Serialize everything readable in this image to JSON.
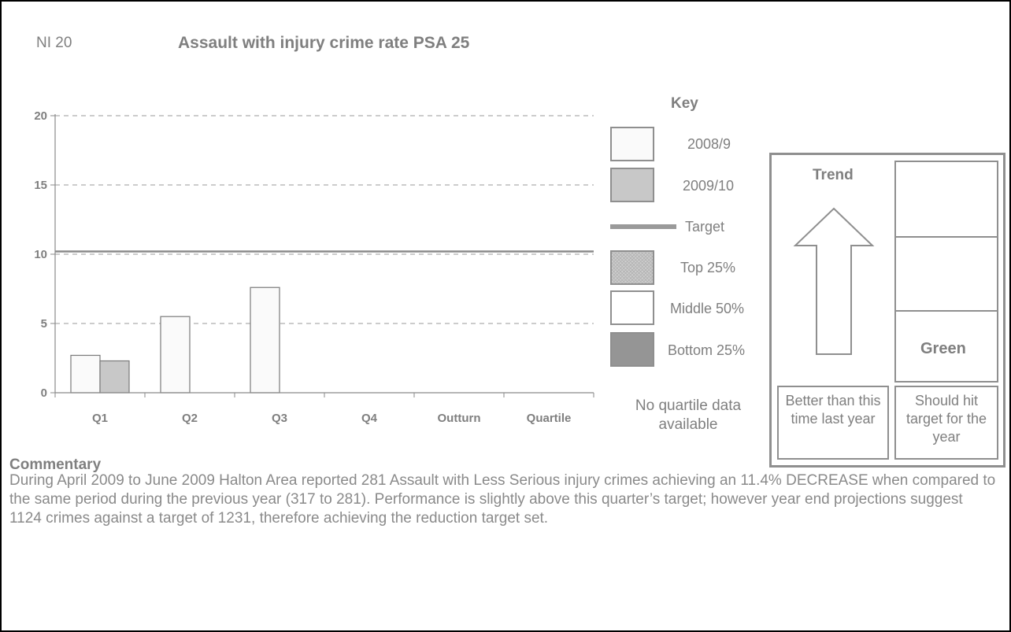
{
  "header": {
    "indicator": "NI 20",
    "title": "Assault with injury crime rate PSA 25"
  },
  "chart_data": {
    "type": "bar",
    "title": "Assault with injury crime rate PSA 25",
    "categories": [
      "Q1",
      "Q2",
      "Q3",
      "Q4",
      "Outturn",
      "Quartile"
    ],
    "series": [
      {
        "name": "2008/9",
        "values": [
          2.7,
          5.5,
          7.6,
          null,
          null,
          null
        ]
      },
      {
        "name": "2009/10",
        "values": [
          2.3,
          null,
          null,
          null,
          null,
          null
        ]
      }
    ],
    "target": 10.2,
    "yticks": [
      0,
      5,
      10,
      15,
      20
    ],
    "ylim": [
      0,
      20
    ],
    "grid": true,
    "legend": "right",
    "colors": {
      "2008/9": "#fafafa",
      "2009/10": "#c8c8c8",
      "target": "#8a8a8a"
    }
  },
  "key": {
    "title": "Key",
    "items": [
      {
        "label": "2008/9",
        "fill": "#fafafa"
      },
      {
        "label": "2009/10",
        "fill": "#c8c8c8"
      },
      {
        "label": "Target",
        "fill": "#9a9a9a"
      },
      {
        "label": "Top 25%",
        "fill": "#cfcfcf"
      },
      {
        "label": "Middle 50%",
        "fill": "#ffffff"
      },
      {
        "label": "Bottom 25%",
        "fill": "#959595"
      }
    ],
    "no_quartile": "No quartile data available"
  },
  "status": {
    "trend_label": "Trend",
    "trend_icon": "up-arrow-icon",
    "traffic_light": "Green",
    "trend_caption": "Better than this time last year",
    "target_caption": "Should hit target for the year"
  },
  "commentary": {
    "heading": "Commentary",
    "text": "During April 2009 to June 2009 Halton Area reported 281 Assault with Less Serious injury crimes achieving an 11.4% DECREASE when compared to the same period during the previous year (317 to 281). Performance is slightly above this quarter’s target; however year end projections suggest 1124 crimes against a target of 1231, therefore achieving the reduction target set."
  }
}
